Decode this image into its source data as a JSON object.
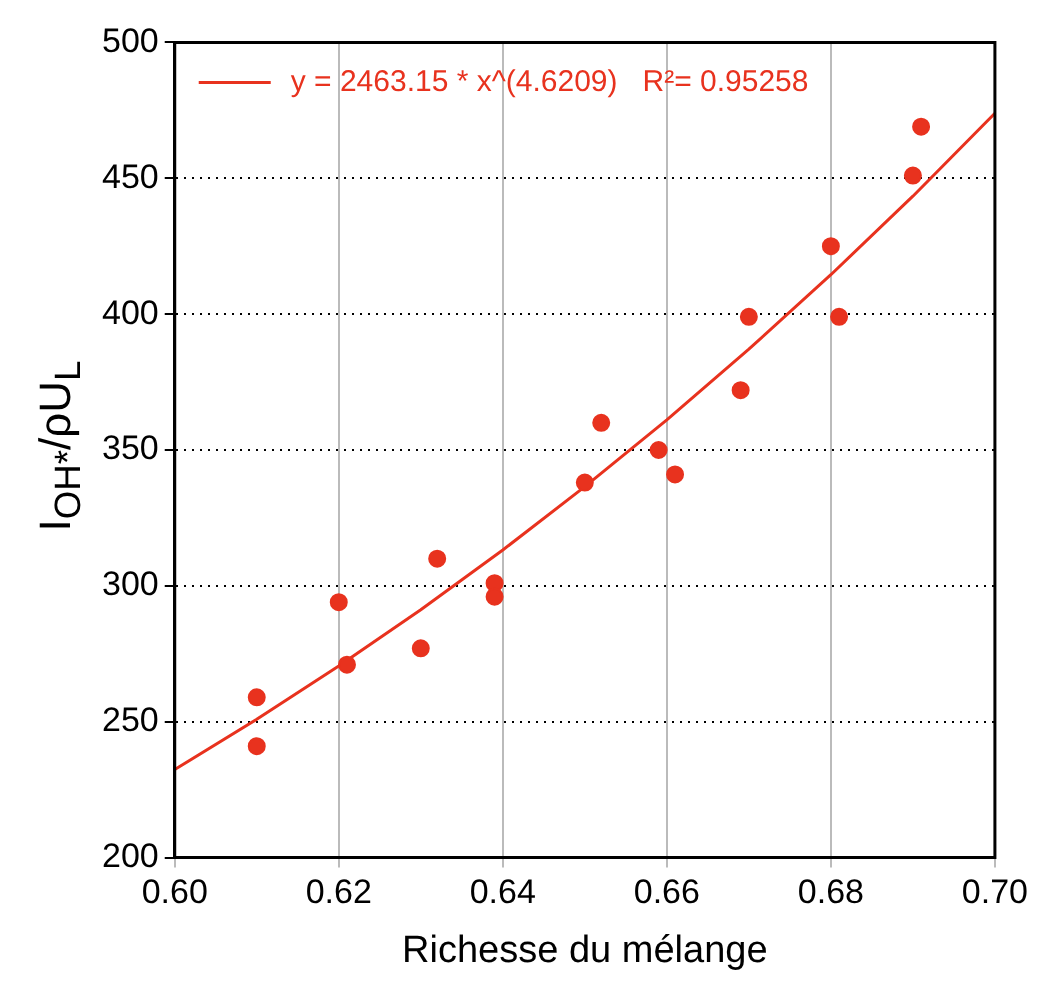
{
  "chart_data": {
    "type": "scatter",
    "xlabel": "Richesse du mélange",
    "ylabel": "I$_{OH*}$/ρU$_{L}$",
    "xlim": [
      0.6,
      0.7
    ],
    "xticks": [
      {
        "value": 0.6,
        "label": "0.60"
      },
      {
        "value": 0.62,
        "label": "0.62"
      },
      {
        "value": 0.64,
        "label": "0.64"
      },
      {
        "value": 0.66,
        "label": "0.66"
      },
      {
        "value": 0.68,
        "label": "0.68"
      },
      {
        "value": 0.7,
        "label": "0.70"
      }
    ],
    "ylim": [
      200,
      500
    ],
    "yticks": [
      200,
      250,
      300,
      350,
      400,
      450,
      500
    ],
    "grid": true,
    "legend": "top left",
    "marker": "circle",
    "series": [
      {
        "type": "scatter",
        "color": "#e8321e",
        "x": [
          0.61,
          0.61,
          0.62,
          0.621,
          0.63,
          0.632,
          0.639,
          0.639,
          0.65,
          0.652,
          0.659,
          0.661,
          0.669,
          0.67,
          0.68,
          0.681,
          0.69,
          0.691
        ],
        "values": [
          259,
          241,
          294,
          271,
          277,
          310,
          301,
          296,
          338,
          360,
          350,
          341,
          372,
          399,
          425,
          399,
          451,
          469
        ]
      },
      {
        "type": "line",
        "name": "y = 2463.15 * x^(4.6209)   R²= 0.95258",
        "color": "#e8321e",
        "marker": "none",
        "line_style": "solid",
        "x": [
          0.6,
          0.61,
          0.62,
          0.63,
          0.64,
          0.65,
          0.66,
          0.67,
          0.68,
          0.69,
          0.7
        ],
        "values": [
          232.4,
          250.9,
          270.5,
          291.2,
          313.2,
          336.5,
          361.1,
          387.1,
          414.5,
          443.4,
          473.9
        ]
      }
    ]
  }
}
